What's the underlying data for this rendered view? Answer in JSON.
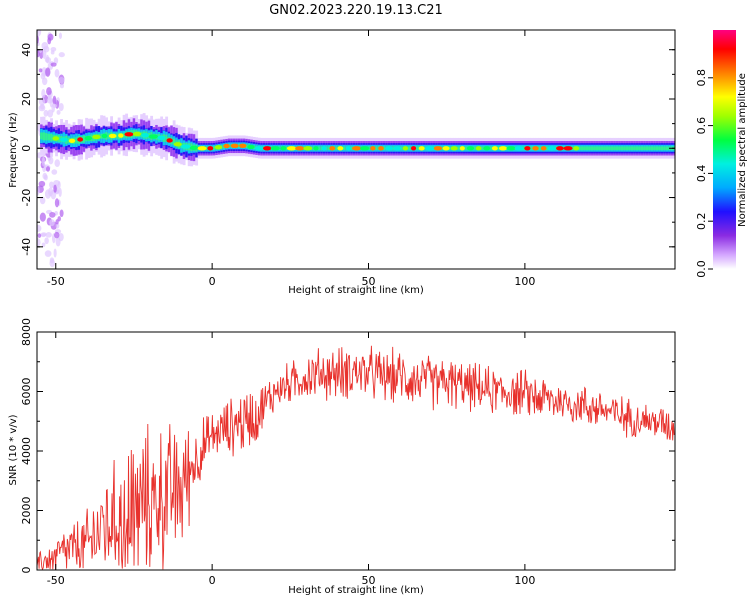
{
  "title": "GN02.2023.220.19.13.C21",
  "chart_data": [
    {
      "type": "heatmap",
      "title": "GN02.2023.220.19.13.C21",
      "xlabel": "Height of straight line (km)",
      "ylabel": "Frequency (Hz)",
      "xlim": [
        -56,
        148
      ],
      "ylim": [
        -49,
        48
      ],
      "x_ticks": [
        "-50",
        "0",
        "50",
        "100"
      ],
      "x_tick_values": [
        -50,
        0,
        50,
        100
      ],
      "y_ticks": [
        "-40",
        "-20",
        "0",
        "20",
        "40"
      ],
      "y_tick_values": [
        -40,
        -20,
        0,
        20,
        40
      ],
      "colorbar": {
        "label": "Normalized spectral amplitude",
        "range": [
          0,
          1
        ],
        "ticks": [
          "0.0",
          "0.2",
          "0.4",
          "0.6",
          "0.8"
        ],
        "tick_values": [
          0.0,
          0.2,
          0.4,
          0.6,
          0.8
        ],
        "colormap": "rainbow (white-purple-blue-cyan-green-yellow-red-magenta)"
      },
      "ridge": {
        "x": [
          -55,
          -50,
          -45,
          -40,
          -35,
          -30,
          -25,
          -20,
          -15,
          -10,
          -5,
          0,
          5,
          10,
          15,
          20,
          40,
          60,
          80,
          100,
          120,
          148
        ],
        "frequency": [
          5,
          4,
          3,
          4,
          5,
          5,
          6,
          5,
          4,
          1,
          0,
          0,
          1,
          1,
          0,
          0,
          0,
          0,
          0,
          0,
          0,
          0
        ]
      }
    },
    {
      "type": "line",
      "xlabel": "Height of straight line (km)",
      "ylabel": "SNR (10 * v/v)",
      "xlim": [
        -56,
        148
      ],
      "ylim": [
        0,
        8000
      ],
      "x_ticks": [
        "-50",
        "0",
        "50",
        "100"
      ],
      "x_tick_values": [
        -50,
        0,
        50,
        100
      ],
      "y_ticks": [
        "0",
        "2000",
        "4000",
        "6000",
        "8000"
      ],
      "y_tick_values": [
        0,
        2000,
        4000,
        6000,
        8000
      ],
      "color": "#e8312c",
      "envelope": {
        "x": [
          -56,
          -50,
          -45,
          -40,
          -35,
          -30,
          -25,
          -20,
          -15,
          -10,
          -5,
          0,
          5,
          10,
          15,
          20,
          25,
          30,
          35,
          40,
          45,
          50,
          55,
          60,
          65,
          70,
          75,
          80,
          85,
          90,
          95,
          100,
          105,
          110,
          115,
          120,
          125,
          130,
          135,
          140,
          145,
          148
        ],
        "mean": [
          200,
          500,
          700,
          800,
          1500,
          1700,
          2000,
          2300,
          2500,
          2700,
          3800,
          4500,
          4800,
          5000,
          5300,
          6000,
          6300,
          6500,
          6600,
          6600,
          6700,
          6600,
          6500,
          6500,
          6400,
          6300,
          6300,
          6200,
          6100,
          6000,
          6000,
          5900,
          5800,
          5700,
          5600,
          5500,
          5400,
          5200,
          5100,
          5000,
          4900,
          4800
        ],
        "spread": [
          300,
          700,
          900,
          1200,
          1800,
          2000,
          2400,
          2500,
          2400,
          2200,
          1200,
          800,
          900,
          1200,
          900,
          700,
          700,
          800,
          900,
          900,
          900,
          900,
          900,
          900,
          900,
          900,
          900,
          800,
          800,
          800,
          800,
          800,
          800,
          700,
          700,
          700,
          700,
          700,
          600,
          600,
          600,
          600
        ]
      }
    }
  ]
}
